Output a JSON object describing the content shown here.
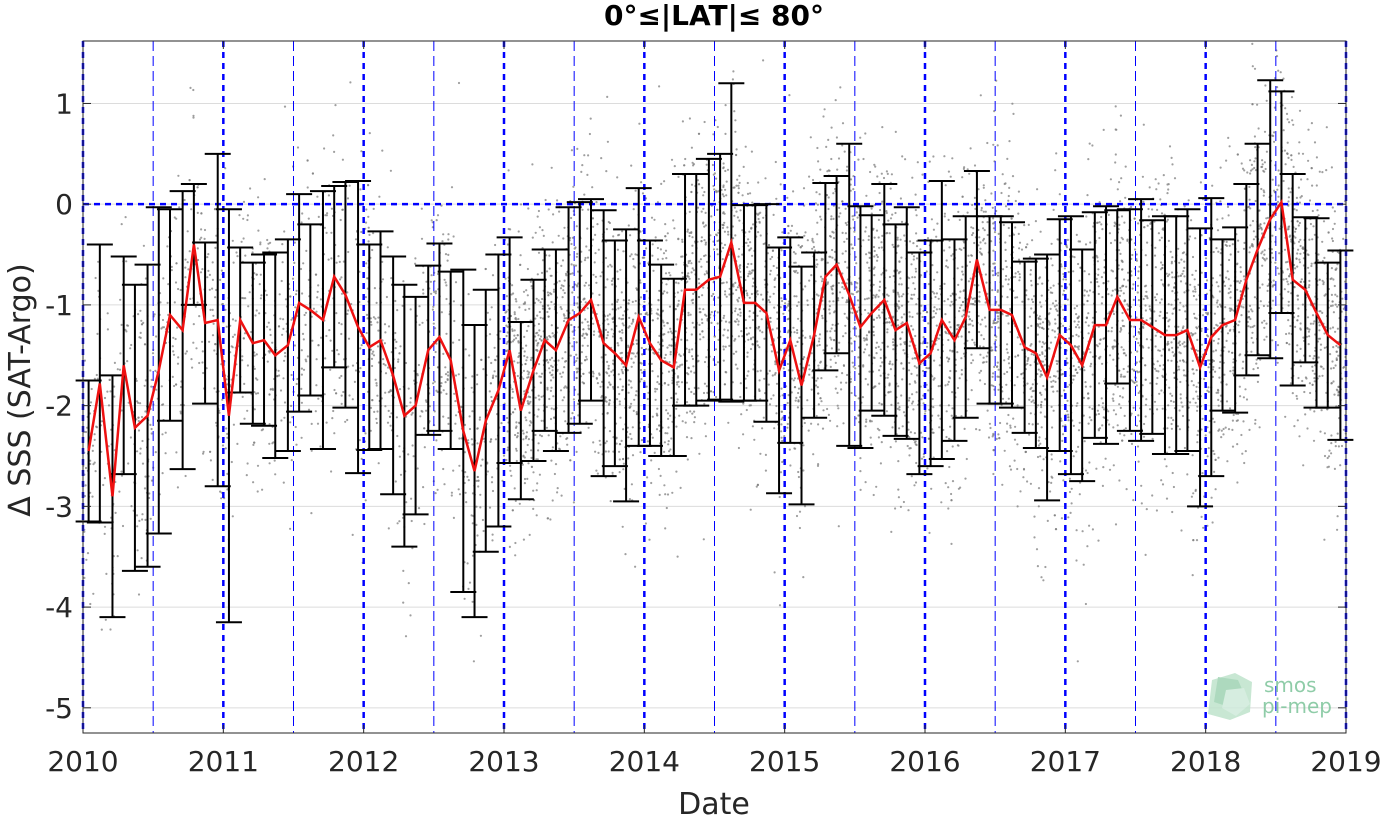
{
  "chart_data": {
    "type": "line",
    "title": "0°≤|LAT|≤ 80°",
    "xlabel": "Date",
    "ylabel": "Δ SSS (SAT-Argo)",
    "xlim": [
      2010.0,
      2019.0
    ],
    "ylim": [
      -5.25,
      1.62
    ],
    "x_ticks": [
      "2010",
      "2011",
      "2012",
      "2013",
      "2014",
      "2015",
      "2016",
      "2017",
      "2018",
      "2019"
    ],
    "y_ticks": [
      "1",
      "0",
      "-1",
      "-2",
      "-3",
      "-4",
      "-5"
    ],
    "y_tick_values": [
      1,
      0,
      -1,
      -2,
      -3,
      -4,
      -5
    ],
    "grid": true,
    "reference_line": {
      "y": 0,
      "color": "#0000ff",
      "style": "dashed"
    },
    "vertical_reference_lines": {
      "yearly": [
        2010,
        2011,
        2012,
        2013,
        2014,
        2015,
        2016,
        2017,
        2018,
        2019
      ],
      "half_yearly": [
        2010.5,
        2011.5,
        2012.5,
        2013.5,
        2014.5,
        2015.5,
        2016.5,
        2017.5,
        2018.5
      ],
      "color": "#0000ff"
    },
    "series": [
      {
        "style": "red line with black error bars (monthly mean ± std)",
        "color": "#ee1111",
        "x": [
          2010.04,
          2010.12,
          2010.21,
          2010.29,
          2010.37,
          2010.46,
          2010.54,
          2010.62,
          2010.71,
          2010.79,
          2010.87,
          2010.96,
          2011.04,
          2011.12,
          2011.21,
          2011.29,
          2011.37,
          2011.46,
          2011.54,
          2011.62,
          2011.71,
          2011.79,
          2011.87,
          2011.96,
          2012.04,
          2012.12,
          2012.21,
          2012.29,
          2012.37,
          2012.46,
          2012.54,
          2012.62,
          2012.71,
          2012.79,
          2012.87,
          2012.96,
          2013.04,
          2013.12,
          2013.21,
          2013.29,
          2013.37,
          2013.46,
          2013.54,
          2013.62,
          2013.71,
          2013.79,
          2013.87,
          2013.96,
          2014.04,
          2014.12,
          2014.21,
          2014.29,
          2014.37,
          2014.46,
          2014.54,
          2014.62,
          2014.71,
          2014.79,
          2014.87,
          2014.96,
          2015.04,
          2015.12,
          2015.21,
          2015.29,
          2015.37,
          2015.46,
          2015.54,
          2015.62,
          2015.71,
          2015.79,
          2015.87,
          2015.96,
          2016.04,
          2016.12,
          2016.21,
          2016.29,
          2016.37,
          2016.46,
          2016.54,
          2016.62,
          2016.71,
          2016.79,
          2016.87,
          2016.96,
          2017.04,
          2017.12,
          2017.21,
          2017.29,
          2017.37,
          2017.46,
          2017.54,
          2017.62,
          2017.71,
          2017.79,
          2017.87,
          2017.96,
          2018.04,
          2018.12,
          2018.21,
          2018.29,
          2018.37,
          2018.46,
          2018.54,
          2018.62,
          2018.71,
          2018.79,
          2018.87,
          2018.96
        ],
        "y": [
          -2.45,
          -1.78,
          -2.9,
          -1.6,
          -2.22,
          -2.1,
          -1.65,
          -1.1,
          -1.25,
          -0.4,
          -1.18,
          -1.15,
          -2.1,
          -1.15,
          -1.38,
          -1.35,
          -1.5,
          -1.4,
          -0.98,
          -1.05,
          -1.15,
          -0.72,
          -0.9,
          -1.22,
          -1.42,
          -1.35,
          -1.7,
          -2.1,
          -2.0,
          -1.45,
          -1.32,
          -1.55,
          -2.25,
          -2.65,
          -2.15,
          -1.85,
          -1.45,
          -2.05,
          -1.65,
          -1.35,
          -1.45,
          -1.15,
          -1.08,
          -0.95,
          -1.38,
          -1.48,
          -1.6,
          -1.12,
          -1.38,
          -1.55,
          -1.62,
          -0.85,
          -0.85,
          -0.75,
          -0.72,
          -0.38,
          -0.98,
          -0.98,
          -1.08,
          -1.65,
          -1.35,
          -1.8,
          -1.3,
          -0.72,
          -0.6,
          -0.9,
          -1.22,
          -1.08,
          -0.95,
          -1.25,
          -1.18,
          -1.58,
          -1.48,
          -1.15,
          -1.35,
          -1.12,
          -0.55,
          -1.05,
          -1.05,
          -1.1,
          -1.42,
          -1.48,
          -1.72,
          -1.3,
          -1.4,
          -1.6,
          -1.2,
          -1.2,
          -0.92,
          -1.15,
          -1.15,
          -1.22,
          -1.3,
          -1.3,
          -1.25,
          -1.62,
          -1.32,
          -1.2,
          -1.15,
          -0.75,
          -0.45,
          -0.15,
          0.02,
          -0.75,
          -0.85,
          -1.08,
          -1.3,
          -1.4
        ],
        "error_std": [
          0.7,
          1.38,
          1.2,
          1.08,
          1.42,
          1.5,
          1.62,
          1.05,
          1.38,
          0.6,
          0.8,
          1.65,
          2.05,
          0.72,
          0.8,
          0.85,
          1.02,
          1.05,
          1.08,
          0.85,
          1.28,
          0.9,
          1.12,
          1.45,
          1.02,
          1.08,
          1.18,
          1.3,
          1.08,
          0.84,
          0.93,
          0.88,
          1.6,
          1.45,
          1.3,
          1.35,
          1.12,
          0.88,
          0.9,
          0.9,
          1.0,
          1.12,
          1.1,
          1.0,
          1.32,
          1.12,
          1.35,
          1.28,
          1.02,
          0.95,
          0.88,
          1.15,
          1.15,
          1.2,
          1.22,
          1.58,
          0.97,
          0.97,
          1.08,
          1.22,
          1.02,
          1.18,
          0.82,
          0.93,
          0.88,
          1.5,
          1.2,
          0.97,
          1.15,
          1.05,
          1.15,
          1.1,
          1.12,
          1.38,
          1.0,
          1.0,
          0.88,
          0.93,
          0.93,
          0.92,
          0.85,
          0.94,
          1.22,
          1.15,
          1.28,
          1.15,
          1.12,
          1.18,
          0.86,
          1.1,
          1.2,
          1.06,
          1.18,
          1.18,
          1.2,
          1.38,
          1.38,
          0.85,
          0.92,
          0.95,
          1.05,
          1.38,
          1.1,
          1.05,
          0.72,
          0.94,
          0.72,
          0.94
        ]
      },
      {
        "style": "grey scatter points (individual collocations)",
        "color": "#7f7f7f",
        "count_shown": 7000,
        "random_seed": 12345
      }
    ],
    "logo_text": [
      "smos",
      "pi-mep"
    ]
  }
}
